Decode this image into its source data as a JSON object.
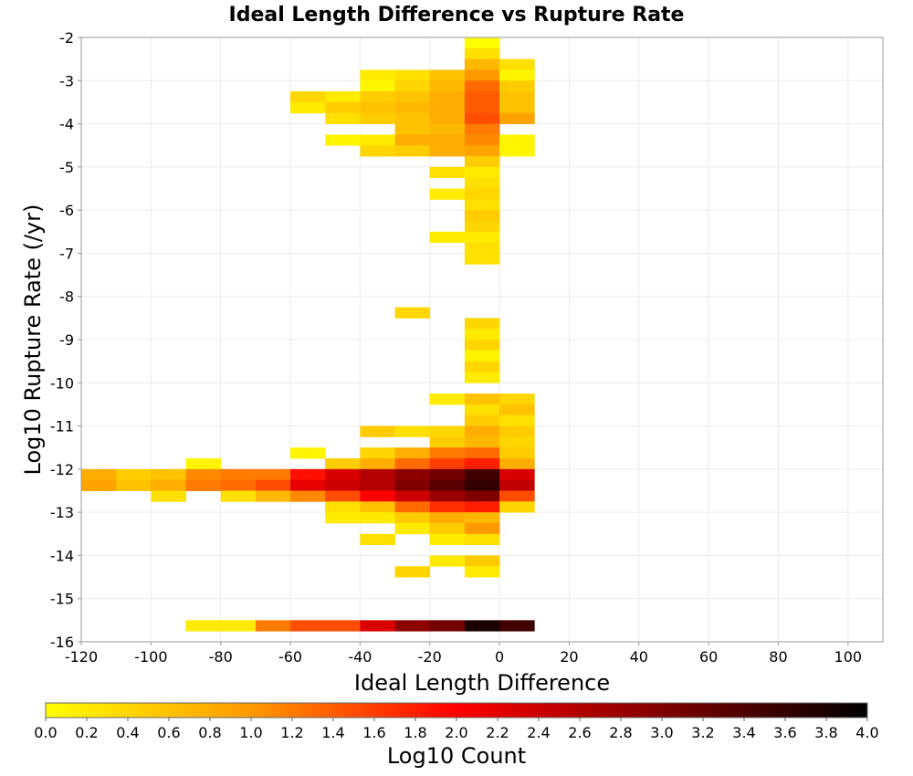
{
  "chart_data": {
    "type": "heatmap",
    "title": "Ideal Length Difference vs Rupture Rate",
    "xlabel": "Ideal Length Difference",
    "ylabel": "Log10 Rupture Rate (/yr)",
    "xlim": [
      -120,
      110
    ],
    "ylim": [
      -16,
      -2
    ],
    "xticks": [
      -120,
      -100,
      -80,
      -60,
      -40,
      -20,
      0,
      20,
      40,
      60,
      80,
      100
    ],
    "yticks": [
      -16,
      -15,
      -14,
      -13,
      -12,
      -11,
      -10,
      -9,
      -8,
      -7,
      -6,
      -5,
      -4,
      -3,
      -2
    ],
    "bin_width_x": 10,
    "bin_height_y": 0.25,
    "colorbar": {
      "label": "Log10 Count",
      "min": 0.0,
      "max": 4.0,
      "ticks": [
        "0.0",
        "0.2",
        "0.4",
        "0.6",
        "0.8",
        "1.0",
        "1.2",
        "1.4",
        "1.6",
        "1.8",
        "2.0",
        "2.2",
        "2.4",
        "2.6",
        "2.8",
        "3.0",
        "3.2",
        "3.4",
        "3.6",
        "3.8",
        "4.0"
      ],
      "colors": [
        "#ffff00",
        "#ff9900",
        "#ff0000",
        "#800000",
        "#000000"
      ]
    },
    "cells": [
      {
        "x": -10,
        "y": -2.25,
        "value": 0.0
      },
      {
        "x": -10,
        "y": -2.5,
        "value": 0.3
      },
      {
        "x": -10,
        "y": -2.75,
        "value": 0.7
      },
      {
        "x": 0,
        "y": -2.75,
        "value": 0.3
      },
      {
        "x": -40,
        "y": -3.0,
        "value": 0.2
      },
      {
        "x": -30,
        "y": -3.0,
        "value": 0.3
      },
      {
        "x": -20,
        "y": -3.0,
        "value": 0.6
      },
      {
        "x": -10,
        "y": -3.0,
        "value": 1.0
      },
      {
        "x": 0,
        "y": -3.0,
        "value": 0.1
      },
      {
        "x": -40,
        "y": -3.25,
        "value": 0.1
      },
      {
        "x": -30,
        "y": -3.25,
        "value": 0.4
      },
      {
        "x": -20,
        "y": -3.25,
        "value": 0.7
      },
      {
        "x": -10,
        "y": -3.25,
        "value": 1.3
      },
      {
        "x": 0,
        "y": -3.25,
        "value": 0.5
      },
      {
        "x": -60,
        "y": -3.5,
        "value": 0.4
      },
      {
        "x": -50,
        "y": -3.5,
        "value": 0.2
      },
      {
        "x": -40,
        "y": -3.5,
        "value": 0.5
      },
      {
        "x": -30,
        "y": -3.5,
        "value": 0.6
      },
      {
        "x": -20,
        "y": -3.5,
        "value": 0.8
      },
      {
        "x": -10,
        "y": -3.5,
        "value": 1.4
      },
      {
        "x": 0,
        "y": -3.5,
        "value": 0.6
      },
      {
        "x": -60,
        "y": -3.75,
        "value": 0.2
      },
      {
        "x": -50,
        "y": -3.75,
        "value": 0.5
      },
      {
        "x": -40,
        "y": -3.75,
        "value": 0.6
      },
      {
        "x": -30,
        "y": -3.75,
        "value": 0.7
      },
      {
        "x": -20,
        "y": -3.75,
        "value": 0.8
      },
      {
        "x": -10,
        "y": -3.75,
        "value": 1.4
      },
      {
        "x": 0,
        "y": -3.75,
        "value": 0.6
      },
      {
        "x": -50,
        "y": -4.0,
        "value": 0.3
      },
      {
        "x": -40,
        "y": -4.0,
        "value": 0.5
      },
      {
        "x": -30,
        "y": -4.0,
        "value": 0.6
      },
      {
        "x": -20,
        "y": -4.0,
        "value": 0.8
      },
      {
        "x": -10,
        "y": -4.0,
        "value": 1.5
      },
      {
        "x": 0,
        "y": -4.0,
        "value": 0.9
      },
      {
        "x": -30,
        "y": -4.25,
        "value": 0.6
      },
      {
        "x": -20,
        "y": -4.25,
        "value": 0.7
      },
      {
        "x": -10,
        "y": -4.25,
        "value": 1.2
      },
      {
        "x": -50,
        "y": -4.5,
        "value": 0.1
      },
      {
        "x": -40,
        "y": -4.5,
        "value": 0.2
      },
      {
        "x": -30,
        "y": -4.5,
        "value": 0.8
      },
      {
        "x": -20,
        "y": -4.5,
        "value": 0.8
      },
      {
        "x": -10,
        "y": -4.5,
        "value": 1.1
      },
      {
        "x": 0,
        "y": -4.5,
        "value": 0.1
      },
      {
        "x": -40,
        "y": -4.75,
        "value": 0.4
      },
      {
        "x": -30,
        "y": -4.75,
        "value": 0.5
      },
      {
        "x": -20,
        "y": -4.75,
        "value": 0.8
      },
      {
        "x": -10,
        "y": -4.75,
        "value": 0.9
      },
      {
        "x": 0,
        "y": -4.75,
        "value": 0.1
      },
      {
        "x": -10,
        "y": -5.0,
        "value": 0.5
      },
      {
        "x": -20,
        "y": -5.25,
        "value": 0.3
      },
      {
        "x": -10,
        "y": -5.25,
        "value": 0.2
      },
      {
        "x": -10,
        "y": -5.5,
        "value": 0.3
      },
      {
        "x": -20,
        "y": -5.75,
        "value": 0.2
      },
      {
        "x": -10,
        "y": -5.75,
        "value": 0.4
      },
      {
        "x": -10,
        "y": -6.0,
        "value": 0.3
      },
      {
        "x": -10,
        "y": -6.25,
        "value": 0.5
      },
      {
        "x": -10,
        "y": -6.5,
        "value": 0.4
      },
      {
        "x": -20,
        "y": -6.75,
        "value": 0.2
      },
      {
        "x": -10,
        "y": -6.75,
        "value": 0.2
      },
      {
        "x": -10,
        "y": -7.0,
        "value": 0.3
      },
      {
        "x": -10,
        "y": -7.25,
        "value": 0.3
      },
      {
        "x": -30,
        "y": -8.5,
        "value": 0.4
      },
      {
        "x": -10,
        "y": -8.75,
        "value": 0.4
      },
      {
        "x": -10,
        "y": -9.0,
        "value": 0.2
      },
      {
        "x": -10,
        "y": -9.25,
        "value": 0.4
      },
      {
        "x": -10,
        "y": -9.5,
        "value": 0.1
      },
      {
        "x": -10,
        "y": -9.75,
        "value": 0.4
      },
      {
        "x": -10,
        "y": -10.0,
        "value": 0.2
      },
      {
        "x": -20,
        "y": -10.5,
        "value": 0.2
      },
      {
        "x": -10,
        "y": -10.5,
        "value": 0.6
      },
      {
        "x": 0,
        "y": -10.5,
        "value": 0.4
      },
      {
        "x": -10,
        "y": -10.75,
        "value": 0.3
      },
      {
        "x": 0,
        "y": -10.75,
        "value": 0.6
      },
      {
        "x": -10,
        "y": -11.0,
        "value": 0.5
      },
      {
        "x": 0,
        "y": -11.0,
        "value": 0.3
      },
      {
        "x": -40,
        "y": -11.25,
        "value": 0.5
      },
      {
        "x": -30,
        "y": -11.25,
        "value": 0.3
      },
      {
        "x": -20,
        "y": -11.25,
        "value": 0.4
      },
      {
        "x": -10,
        "y": -11.25,
        "value": 0.8
      },
      {
        "x": 0,
        "y": -11.25,
        "value": 0.5
      },
      {
        "x": -20,
        "y": -11.5,
        "value": 0.5
      },
      {
        "x": -10,
        "y": -11.5,
        "value": 0.7
      },
      {
        "x": 0,
        "y": -11.5,
        "value": 0.4
      },
      {
        "x": -60,
        "y": -11.75,
        "value": 0.1
      },
      {
        "x": -40,
        "y": -11.75,
        "value": 0.4
      },
      {
        "x": -30,
        "y": -11.75,
        "value": 0.8
      },
      {
        "x": -20,
        "y": -11.75,
        "value": 1.2
      },
      {
        "x": -10,
        "y": -11.75,
        "value": 1.3
      },
      {
        "x": 0,
        "y": -11.75,
        "value": 0.5
      },
      {
        "x": -90,
        "y": -12.0,
        "value": 0.1
      },
      {
        "x": -50,
        "y": -12.0,
        "value": 0.5
      },
      {
        "x": -40,
        "y": -12.0,
        "value": 0.8
      },
      {
        "x": -30,
        "y": -12.0,
        "value": 1.3
      },
      {
        "x": -20,
        "y": -12.0,
        "value": 1.6
      },
      {
        "x": -10,
        "y": -12.0,
        "value": 1.8
      },
      {
        "x": 0,
        "y": -12.0,
        "value": 0.8
      },
      {
        "x": -120,
        "y": -12.25,
        "value": 0.8
      },
      {
        "x": -110,
        "y": -12.25,
        "value": 0.5
      },
      {
        "x": -100,
        "y": -12.25,
        "value": 0.6
      },
      {
        "x": -90,
        "y": -12.25,
        "value": 1.1
      },
      {
        "x": -80,
        "y": -12.25,
        "value": 1.2
      },
      {
        "x": -70,
        "y": -12.25,
        "value": 1.2
      },
      {
        "x": -60,
        "y": -12.25,
        "value": 1.9
      },
      {
        "x": -50,
        "y": -12.25,
        "value": 2.3
      },
      {
        "x": -40,
        "y": -12.25,
        "value": 2.6
      },
      {
        "x": -30,
        "y": -12.25,
        "value": 2.9
      },
      {
        "x": -20,
        "y": -12.25,
        "value": 3.1
      },
      {
        "x": -10,
        "y": -12.25,
        "value": 3.5
      },
      {
        "x": 0,
        "y": -12.25,
        "value": 2.3
      },
      {
        "x": -120,
        "y": -12.5,
        "value": 0.9
      },
      {
        "x": -110,
        "y": -12.5,
        "value": 0.6
      },
      {
        "x": -100,
        "y": -12.5,
        "value": 0.8
      },
      {
        "x": -90,
        "y": -12.5,
        "value": 1.2
      },
      {
        "x": -80,
        "y": -12.5,
        "value": 1.3
      },
      {
        "x": -70,
        "y": -12.5,
        "value": 1.5
      },
      {
        "x": -60,
        "y": -12.5,
        "value": 2.2
      },
      {
        "x": -50,
        "y": -12.5,
        "value": 2.4
      },
      {
        "x": -40,
        "y": -12.5,
        "value": 2.6
      },
      {
        "x": -30,
        "y": -12.5,
        "value": 3.0
      },
      {
        "x": -20,
        "y": -12.5,
        "value": 3.3
      },
      {
        "x": -10,
        "y": -12.5,
        "value": 3.6
      },
      {
        "x": 0,
        "y": -12.5,
        "value": 2.5
      },
      {
        "x": -100,
        "y": -12.75,
        "value": 0.3
      },
      {
        "x": -80,
        "y": -12.75,
        "value": 0.3
      },
      {
        "x": -70,
        "y": -12.75,
        "value": 0.7
      },
      {
        "x": -60,
        "y": -12.75,
        "value": 1.1
      },
      {
        "x": -50,
        "y": -12.75,
        "value": 1.5
      },
      {
        "x": -40,
        "y": -12.75,
        "value": 2.0
      },
      {
        "x": -30,
        "y": -12.75,
        "value": 2.4
      },
      {
        "x": -20,
        "y": -12.75,
        "value": 2.8
      },
      {
        "x": -10,
        "y": -12.75,
        "value": 3.0
      },
      {
        "x": 0,
        "y": -12.75,
        "value": 1.5
      },
      {
        "x": -50,
        "y": -13.0,
        "value": 0.3
      },
      {
        "x": -40,
        "y": -13.0,
        "value": 0.6
      },
      {
        "x": -30,
        "y": -13.0,
        "value": 1.3
      },
      {
        "x": -20,
        "y": -13.0,
        "value": 1.7
      },
      {
        "x": -10,
        "y": -13.0,
        "value": 1.8
      },
      {
        "x": 0,
        "y": -13.0,
        "value": 0.4
      },
      {
        "x": -50,
        "y": -13.25,
        "value": 0.2
      },
      {
        "x": -40,
        "y": -13.25,
        "value": 0.2
      },
      {
        "x": -30,
        "y": -13.25,
        "value": 0.5
      },
      {
        "x": -20,
        "y": -13.25,
        "value": 0.8
      },
      {
        "x": -10,
        "y": -13.25,
        "value": 0.7
      },
      {
        "x": -30,
        "y": -13.5,
        "value": 0.2
      },
      {
        "x": -20,
        "y": -13.5,
        "value": 0.5
      },
      {
        "x": -10,
        "y": -13.5,
        "value": 1.0
      },
      {
        "x": -40,
        "y": -13.75,
        "value": 0.3
      },
      {
        "x": -20,
        "y": -13.75,
        "value": 0.2
      },
      {
        "x": -10,
        "y": -13.75,
        "value": 0.3
      },
      {
        "x": -20,
        "y": -14.25,
        "value": 0.2
      },
      {
        "x": -10,
        "y": -14.25,
        "value": 0.5
      },
      {
        "x": -30,
        "y": -14.5,
        "value": 0.4
      },
      {
        "x": -10,
        "y": -14.5,
        "value": 0.2
      },
      {
        "x": -90,
        "y": -15.75,
        "value": 0.2
      },
      {
        "x": -80,
        "y": -15.75,
        "value": 0.2
      },
      {
        "x": -70,
        "y": -15.75,
        "value": 1.2
      },
      {
        "x": -60,
        "y": -15.75,
        "value": 1.5
      },
      {
        "x": -50,
        "y": -15.75,
        "value": 1.5
      },
      {
        "x": -40,
        "y": -15.75,
        "value": 2.3
      },
      {
        "x": -30,
        "y": -15.75,
        "value": 2.9
      },
      {
        "x": -20,
        "y": -15.75,
        "value": 3.1
      },
      {
        "x": -10,
        "y": -15.75,
        "value": 3.8
      },
      {
        "x": 0,
        "y": -15.75,
        "value": 3.5
      }
    ]
  }
}
